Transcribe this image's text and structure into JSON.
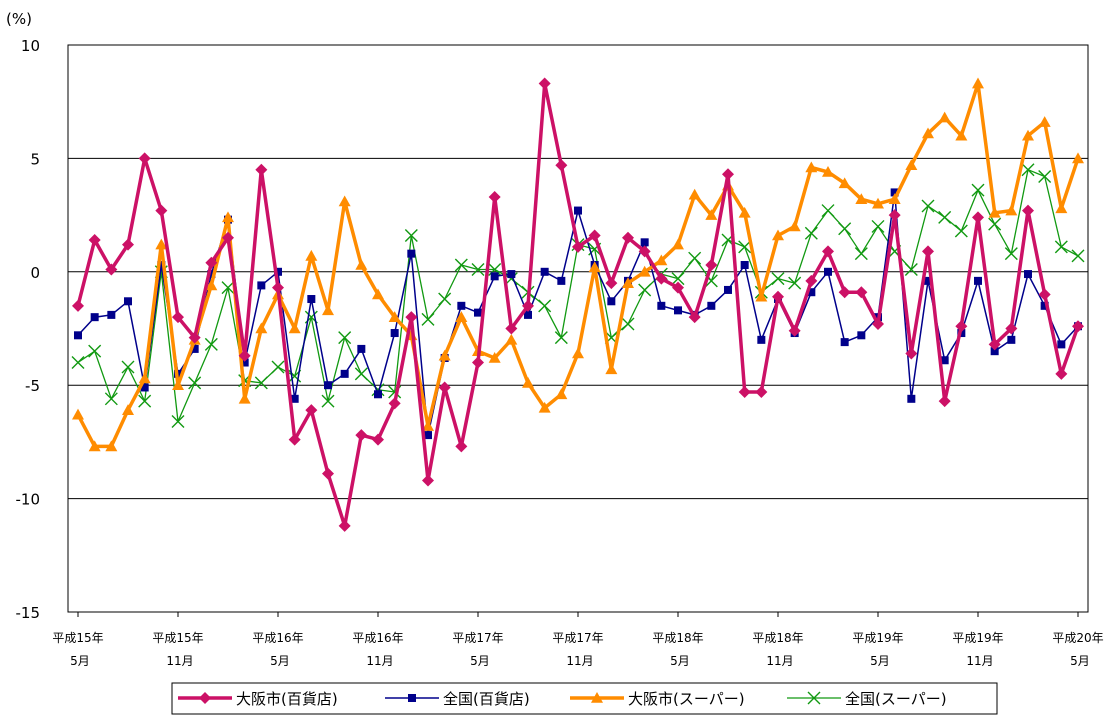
{
  "chart_data": {
    "type": "line",
    "unit_label": "(%)",
    "ylim": [
      -15,
      10
    ],
    "y_ticks": [
      10,
      5,
      0,
      -5,
      -10,
      -15
    ],
    "y_tick_labels": [
      "10",
      "5",
      "0",
      "-5",
      "-10",
      "-15"
    ],
    "grid": true,
    "n_points": 61,
    "x_tick_labels": [
      {
        "index": 0,
        "line1": "平成15年",
        "line2": "5月"
      },
      {
        "index": 6,
        "line1": "平成15年",
        "line2": "11月"
      },
      {
        "index": 12,
        "line1": "平成16年",
        "line2": "5月"
      },
      {
        "index": 18,
        "line1": "平成16年",
        "line2": "11月"
      },
      {
        "index": 24,
        "line1": "平成17年",
        "line2": "5月"
      },
      {
        "index": 30,
        "line1": "平成17年",
        "line2": "11月"
      },
      {
        "index": 36,
        "line1": "平成18年",
        "line2": "5月"
      },
      {
        "index": 42,
        "line1": "平成18年",
        "line2": "11月"
      },
      {
        "index": 48,
        "line1": "平成19年",
        "line2": "5月"
      },
      {
        "index": 54,
        "line1": "平成19年",
        "line2": "11月"
      },
      {
        "index": 60,
        "line1": "平成20年",
        "line2": "5月"
      }
    ],
    "legend_position": "bottom",
    "series": [
      {
        "name": "大阪市(百貨店)",
        "color": "#cc1166",
        "marker": "diamond",
        "values": [
          -1.5,
          1.4,
          0.1,
          1.2,
          5.0,
          2.7,
          -2.0,
          -2.9,
          0.4,
          1.5,
          -3.7,
          4.5,
          -0.7,
          -7.4,
          -6.1,
          -8.9,
          -11.2,
          -7.2,
          -7.4,
          -5.8,
          -2.0,
          -9.2,
          -5.1,
          -7.7,
          -4.0,
          3.3,
          -2.5,
          -1.5,
          8.3,
          4.7,
          1.1,
          1.6,
          -0.5,
          1.5,
          0.9,
          -0.3,
          -0.7,
          -2.0,
          0.3,
          4.3,
          -5.3,
          -5.3,
          -1.1,
          -2.6,
          -0.4,
          0.9,
          -0.9,
          -0.9,
          -2.3,
          2.5,
          -3.6,
          0.9,
          -5.7,
          -2.4,
          2.4,
          -3.2,
          -2.5,
          2.7,
          -1.0,
          -4.5,
          -2.4
        ]
      },
      {
        "name": "全国(百貨店)",
        "color": "#00008b",
        "marker": "square",
        "values": [
          -2.8,
          -2.0,
          -1.9,
          -1.3,
          -5.1,
          0.3,
          -4.5,
          -3.4,
          -0.1,
          2.3,
          -4.0,
          -0.6,
          0.0,
          -5.6,
          -1.2,
          -5.0,
          -4.5,
          -3.4,
          -5.4,
          -2.7,
          0.8,
          -7.2,
          -3.8,
          -1.5,
          -1.8,
          -0.2,
          -0.1,
          -1.9,
          0.0,
          -0.4,
          2.7,
          0.3,
          -1.3,
          -0.4,
          1.3,
          -1.5,
          -1.7,
          -1.9,
          -1.5,
          -0.8,
          0.3,
          -3.0,
          -1.2,
          -2.7,
          -0.9,
          -0.0,
          -3.1,
          -2.8,
          -2.0,
          3.5,
          -5.6,
          -0.4,
          -3.9,
          -2.7,
          -0.4,
          -3.5,
          -3.0,
          -0.1,
          -1.5,
          -3.2,
          -2.4
        ]
      },
      {
        "name": "大阪市(スーパー)",
        "color": "#ff8c00",
        "marker": "triangle",
        "values": [
          -6.3,
          -7.7,
          -7.7,
          -6.1,
          -4.7,
          1.2,
          -5.0,
          -3.0,
          -0.6,
          2.4,
          -5.6,
          -2.5,
          -1.0,
          -2.5,
          0.7,
          -1.7,
          3.1,
          0.3,
          -1.0,
          -2.0,
          -2.8,
          -6.8,
          -3.7,
          -2.0,
          -3.5,
          -3.8,
          -3.0,
          -4.9,
          -6.0,
          -5.4,
          -3.6,
          0.2,
          -4.3,
          -0.5,
          0.0,
          0.5,
          1.2,
          3.4,
          2.5,
          3.8,
          2.6,
          -1.1,
          1.6,
          2.0,
          4.6,
          4.4,
          3.9,
          3.2,
          3.0,
          3.2,
          4.7,
          6.1,
          6.8,
          6.0,
          8.3,
          2.6,
          2.7,
          6.0,
          6.6,
          2.8,
          5.0
        ]
      },
      {
        "name": "全国(スーパー)",
        "color": "#119911",
        "marker": "x",
        "values": [
          -4.0,
          -3.5,
          -5.6,
          -4.2,
          -5.7,
          0.0,
          -6.6,
          -4.9,
          -3.2,
          -0.7,
          -4.8,
          -4.9,
          -4.2,
          -4.6,
          -2.0,
          -5.7,
          -2.9,
          -4.5,
          -5.2,
          -5.3,
          1.6,
          -2.1,
          -1.2,
          0.3,
          0.1,
          0.1,
          -0.3,
          -0.9,
          -1.5,
          -2.9,
          1.2,
          1.0,
          -2.9,
          -2.3,
          -0.8,
          -0.1,
          -0.3,
          0.6,
          -0.4,
          1.4,
          1.1,
          -0.9,
          -0.3,
          -0.5,
          1.7,
          2.7,
          1.9,
          0.8,
          2.0,
          0.9,
          0.1,
          2.9,
          2.4,
          1.8,
          3.6,
          2.1,
          0.8,
          4.5,
          4.2,
          1.1,
          0.7
        ]
      }
    ]
  }
}
